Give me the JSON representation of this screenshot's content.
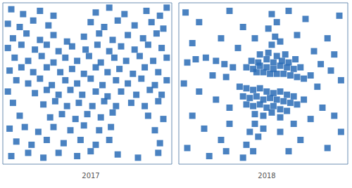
{
  "chart_data": [
    {
      "type": "scatter",
      "title": "2017",
      "color": "#2a6cb6",
      "grid": false,
      "tick_labels": false,
      "xlim": [
        0,
        100
      ],
      "ylim": [
        0,
        100
      ],
      "x": [
        5,
        12,
        22,
        30,
        55,
        63,
        72,
        85,
        93,
        97,
        3,
        10,
        18,
        27,
        52,
        60,
        68,
        78,
        88,
        95,
        6,
        14,
        22,
        30,
        38,
        48,
        57,
        65,
        74,
        83,
        91,
        3,
        11,
        19,
        26,
        33,
        41,
        49,
        56,
        63,
        70,
        78,
        86,
        94,
        7,
        15,
        23,
        30,
        37,
        44,
        51,
        58,
        66,
        73,
        81,
        89,
        97,
        4,
        11,
        18,
        26,
        34,
        41,
        48,
        55,
        62,
        69,
        77,
        84,
        92,
        8,
        15,
        22,
        29,
        37,
        44,
        52,
        59,
        67,
        74,
        82,
        90,
        97,
        3,
        19,
        26,
        33,
        40,
        47,
        55,
        62,
        70,
        79,
        87,
        94,
        6,
        24,
        31,
        38,
        45,
        53,
        60,
        67,
        76,
        84,
        92,
        10,
        28,
        35,
        43,
        50,
        58,
        65,
        86,
        95,
        4,
        13,
        21,
        30,
        40,
        48,
        57,
        64,
        90,
        8,
        17,
        26,
        36,
        46,
        55,
        63,
        93,
        5,
        15,
        24,
        33,
        44,
        52,
        68,
        80,
        92
      ],
      "values": [
        96,
        93,
        95,
        92,
        94,
        97,
        93,
        95,
        92,
        97,
        87,
        85,
        89,
        86,
        88,
        85,
        89,
        86,
        88,
        84,
        78,
        81,
        77,
        80,
        76,
        79,
        81,
        77,
        80,
        78,
        81,
        72,
        74,
        71,
        74,
        70,
        73,
        71,
        74,
        70,
        73,
        71,
        74,
        72,
        66,
        64,
        67,
        63,
        66,
        64,
        67,
        63,
        66,
        64,
        67,
        64,
        66,
        58,
        60,
        57,
        60,
        57,
        59,
        56,
        60,
        57,
        59,
        56,
        60,
        57,
        52,
        50,
        53,
        49,
        52,
        50,
        53,
        49,
        52,
        50,
        53,
        49,
        52,
        45,
        44,
        46,
        43,
        46,
        43,
        45,
        42,
        45,
        43,
        46,
        43,
        38,
        37,
        39,
        36,
        38,
        36,
        39,
        36,
        38,
        36,
        39,
        30,
        29,
        31,
        28,
        31,
        29,
        32,
        30,
        28,
        22,
        23,
        20,
        23,
        21,
        24,
        21,
        23,
        21,
        14,
        12,
        15,
        13,
        15,
        12,
        15,
        13,
        5,
        7,
        4,
        7,
        5,
        8,
        6,
        4,
        7
      ]
    },
    {
      "type": "scatter",
      "title": "2018",
      "color": "#2a6cb6",
      "grid": false,
      "tick_labels": false,
      "xlim": [
        0,
        100
      ],
      "ylim": [
        0,
        100
      ],
      "x": [
        48,
        53,
        58,
        63,
        43,
        47,
        52,
        56,
        61,
        65,
        69,
        40,
        44,
        48,
        52,
        56,
        60,
        64,
        68,
        72,
        46,
        50,
        54,
        58,
        62,
        66,
        70,
        74,
        36,
        40,
        44,
        48,
        52,
        56,
        60,
        64,
        68,
        38,
        42,
        46,
        50,
        54,
        58,
        62,
        66,
        70,
        74,
        40,
        44,
        48,
        52,
        56,
        60,
        64,
        45,
        50,
        55,
        60,
        45,
        42,
        47,
        40,
        44,
        38,
        50,
        55,
        57,
        53,
        58,
        55,
        60,
        32,
        27,
        22,
        16,
        10,
        5,
        28,
        20,
        4,
        12,
        30,
        38,
        45,
        35,
        25,
        8,
        3,
        12,
        22,
        30,
        8,
        15,
        25,
        30,
        5,
        18,
        28,
        65,
        72,
        60,
        68,
        78,
        85,
        92,
        96,
        88,
        78,
        84,
        90,
        96,
        80,
        88,
        70,
        75,
        65,
        95,
        92,
        82
      ],
      "values": [
        68,
        69,
        67,
        68,
        64,
        63,
        65,
        63,
        64,
        63,
        65,
        60,
        59,
        61,
        60,
        59,
        61,
        60,
        59,
        60,
        57,
        57,
        56,
        56,
        56,
        55,
        54,
        53,
        48,
        47,
        46,
        47,
        45,
        44,
        45,
        43,
        42,
        42,
        41,
        42,
        40,
        41,
        40,
        39,
        38,
        37,
        40,
        37,
        36,
        37,
        35,
        36,
        34,
        33,
        31,
        30,
        32,
        29,
        25,
        20,
        17,
        12,
        8,
        4,
        22,
        74,
        79,
        84,
        88,
        93,
        76,
        60,
        62,
        64,
        66,
        65,
        63,
        54,
        55,
        94,
        88,
        95,
        85,
        78,
        72,
        78,
        75,
        50,
        45,
        40,
        35,
        30,
        22,
        15,
        25,
        10,
        5,
        8,
        8,
        15,
        20,
        25,
        28,
        35,
        30,
        20,
        10,
        55,
        62,
        58,
        52,
        70,
        78,
        80,
        90,
        95,
        92,
        68,
        48
      ]
    }
  ]
}
